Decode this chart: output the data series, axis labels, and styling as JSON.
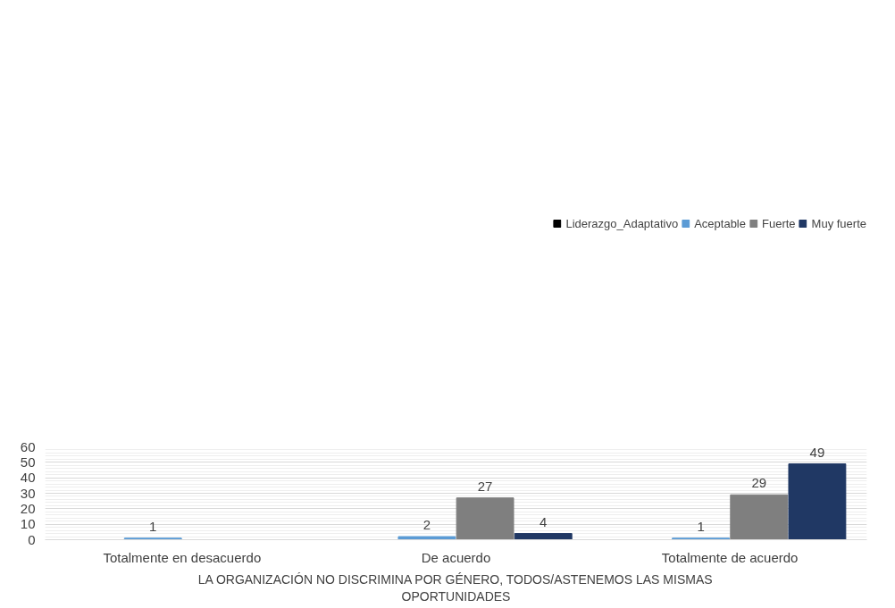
{
  "chart_data": {
    "type": "bar",
    "xlabel": "LA ORGANIZACIÓN NO DISCRIMINA POR GÉNERO, TODOS/ASTENEMOS LAS MISMAS OPORTUNIDADES",
    "categories": [
      "Totalmente en desacuerdo",
      "De acuerdo",
      "Totalmente de acuerdo"
    ],
    "series": [
      {
        "name": "Liderazgo_Adaptativo",
        "color": "#000000",
        "values": [
          null,
          null,
          null
        ]
      },
      {
        "name": "Aceptable",
        "color": "#5b9bd5",
        "values": [
          1,
          2,
          1
        ]
      },
      {
        "name": "Fuerte",
        "color": "#7f7f7f",
        "values": [
          null,
          27,
          29
        ]
      },
      {
        "name": "Muy fuerte",
        "color": "#203864",
        "values": [
          null,
          4,
          49
        ]
      }
    ],
    "ylim": [
      0,
      60
    ],
    "yticks": [
      0,
      10,
      20,
      30,
      40,
      50,
      60
    ],
    "grid": "y",
    "legend": "top",
    "data_labels": true
  }
}
